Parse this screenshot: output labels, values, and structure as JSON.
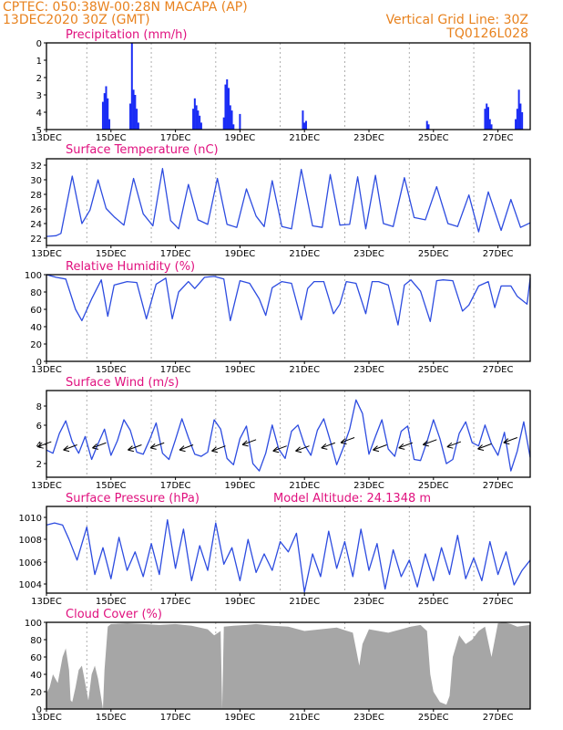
{
  "header": {
    "station_line": "CPTEC:   050:38W-00:28N   MACAPA (AP)",
    "date_line": "13DEC2020 30Z (GMT)",
    "grid_line": "Vertical Grid Line: 30Z",
    "code": "TQ0126L028"
  },
  "colors": {
    "series": "#2d4ce0",
    "header": "#e8821e",
    "title": "#e0107e",
    "cloud": "#a6a6a6",
    "precip": "#1a2cf5"
  },
  "x_axis": {
    "ticks": [
      "13DEC",
      "15DEC",
      "17DEC",
      "19DEC",
      "21DEC",
      "23DEC",
      "25DEC",
      "27DEC"
    ],
    "day_range": [
      13,
      28
    ]
  },
  "chart_data": [
    {
      "type": "bar",
      "title": "Precipitation (mm/h)",
      "ylim": [
        0,
        5
      ],
      "yticks": [
        "0",
        "1",
        "2",
        "3",
        "4",
        "5"
      ],
      "bars": [
        [
          14.75,
          1.6
        ],
        [
          14.8,
          2.1
        ],
        [
          14.85,
          2.5
        ],
        [
          14.9,
          1.8
        ],
        [
          14.95,
          0.6
        ],
        [
          15.6,
          1.5
        ],
        [
          15.65,
          5.0
        ],
        [
          15.7,
          2.3
        ],
        [
          15.75,
          2.0
        ],
        [
          15.8,
          1.2
        ],
        [
          15.85,
          0.4
        ],
        [
          17.55,
          1.2
        ],
        [
          17.6,
          1.8
        ],
        [
          17.65,
          1.4
        ],
        [
          17.7,
          1.1
        ],
        [
          17.75,
          0.8
        ],
        [
          17.8,
          0.4
        ],
        [
          18.5,
          0.7
        ],
        [
          18.55,
          2.6
        ],
        [
          18.6,
          2.9
        ],
        [
          18.65,
          2.4
        ],
        [
          18.7,
          1.4
        ],
        [
          18.75,
          1.1
        ],
        [
          18.8,
          0.3
        ],
        [
          19.0,
          0.9
        ],
        [
          20.95,
          1.1
        ],
        [
          21.0,
          0.4
        ],
        [
          21.05,
          0.5
        ],
        [
          24.8,
          0.5
        ],
        [
          24.85,
          0.3
        ],
        [
          26.6,
          1.2
        ],
        [
          26.65,
          1.5
        ],
        [
          26.7,
          1.3
        ],
        [
          26.75,
          0.6
        ],
        [
          26.8,
          0.3
        ],
        [
          27.55,
          0.6
        ],
        [
          27.6,
          1.2
        ],
        [
          27.65,
          2.3
        ],
        [
          27.7,
          1.5
        ],
        [
          27.75,
          1.0
        ]
      ]
    },
    {
      "type": "line",
      "title": "Surface Temperature (nC)",
      "ylim": [
        21.5,
        33
      ],
      "yticks": [
        "22",
        "24",
        "26",
        "28",
        "30",
        "32"
      ],
      "x": [
        13.0,
        13.3,
        13.45,
        13.8,
        14.1,
        14.35,
        14.6,
        14.85,
        15.1,
        15.4,
        15.7,
        16.0,
        16.3,
        16.6,
        16.85,
        17.1,
        17.4,
        17.7,
        18.0,
        18.3,
        18.6,
        18.9,
        19.2,
        19.5,
        19.75,
        20.0,
        20.3,
        20.6,
        20.9,
        21.25,
        21.55,
        21.8,
        22.1,
        22.4,
        22.65,
        22.9,
        23.2,
        23.45,
        23.75,
        24.1,
        24.4,
        24.75,
        25.1,
        25.45,
        25.75,
        26.1,
        26.4,
        26.7,
        27.1,
        27.4,
        27.7,
        28.0
      ],
      "y": [
        22.7,
        22.8,
        23.1,
        30.7,
        24.4,
        26.2,
        30.2,
        26.4,
        25.3,
        24.2,
        30.4,
        25.7,
        24.1,
        31.7,
        24.8,
        23.7,
        29.6,
        24.9,
        24.3,
        30.4,
        24.3,
        23.9,
        29.0,
        25.4,
        24.0,
        30.1,
        24.0,
        23.7,
        31.6,
        24.1,
        23.9,
        30.9,
        24.2,
        24.3,
        30.6,
        23.7,
        30.8,
        24.4,
        24.0,
        30.5,
        25.2,
        24.9,
        29.3,
        24.4,
        24.0,
        28.2,
        23.3,
        28.6,
        23.5,
        27.6,
        23.9,
        24.5
      ]
    },
    {
      "type": "line",
      "title": "Relative Humidity (%)",
      "ylim": [
        0,
        100
      ],
      "yticks": [
        "0",
        "20",
        "40",
        "60",
        "80",
        "100"
      ],
      "x": [
        13.0,
        13.3,
        13.6,
        13.9,
        14.1,
        14.4,
        14.7,
        14.9,
        15.1,
        15.5,
        15.8,
        16.1,
        16.4,
        16.7,
        16.9,
        17.1,
        17.4,
        17.6,
        17.9,
        18.2,
        18.5,
        18.7,
        19.0,
        19.3,
        19.6,
        19.8,
        20.0,
        20.3,
        20.6,
        20.9,
        21.1,
        21.3,
        21.6,
        21.9,
        22.1,
        22.3,
        22.6,
        22.9,
        23.1,
        23.3,
        23.6,
        23.9,
        24.1,
        24.3,
        24.6,
        24.9,
        25.1,
        25.3,
        25.6,
        25.9,
        26.1,
        26.4,
        26.7,
        26.9,
        27.1,
        27.4,
        27.6,
        27.9,
        28.0
      ],
      "y": [
        100,
        97,
        95,
        60,
        47,
        72,
        94,
        52,
        88,
        92,
        91,
        49,
        89,
        96,
        49,
        80,
        92,
        84,
        97,
        98,
        95,
        47,
        93,
        90,
        72,
        53,
        85,
        92,
        90,
        48,
        84,
        92,
        92,
        55,
        66,
        92,
        90,
        55,
        92,
        92,
        88,
        42,
        88,
        94,
        81,
        46,
        93,
        94,
        93,
        58,
        65,
        87,
        92,
        62,
        87,
        87,
        75,
        66,
        96
      ]
    },
    {
      "type": "line",
      "title": "Surface Wind (m/s)",
      "ylim": [
        1,
        9.3
      ],
      "yticks": [
        "2",
        "4",
        "6",
        "8"
      ],
      "x": [
        13.0,
        13.2,
        13.4,
        13.6,
        13.8,
        14.0,
        14.2,
        14.4,
        14.6,
        14.8,
        15.0,
        15.2,
        15.4,
        15.6,
        15.8,
        16.0,
        16.2,
        16.4,
        16.6,
        16.8,
        17.0,
        17.2,
        17.4,
        17.6,
        17.8,
        18.0,
        18.2,
        18.4,
        18.6,
        18.8,
        19.0,
        19.2,
        19.4,
        19.6,
        19.8,
        20.0,
        20.2,
        20.4,
        20.6,
        20.8,
        21.0,
        21.2,
        21.4,
        21.6,
        21.8,
        22.0,
        22.2,
        22.4,
        22.6,
        22.8,
        23.0,
        23.2,
        23.4,
        23.6,
        23.8,
        24.0,
        24.2,
        24.4,
        24.6,
        24.8,
        25.0,
        25.2,
        25.4,
        25.6,
        25.8,
        26.0,
        26.2,
        26.4,
        26.6,
        26.8,
        27.0,
        27.2,
        27.4,
        27.6,
        27.8,
        28.0
      ],
      "y": [
        3.6,
        3.3,
        5.2,
        6.4,
        4.4,
        3.3,
        4.9,
        2.7,
        4.2,
        5.6,
        3.1,
        4.5,
        6.5,
        5.5,
        3.4,
        3.2,
        4.6,
        6.2,
        3.3,
        2.7,
        4.6,
        6.6,
        4.8,
        3.2,
        3.0,
        3.4,
        6.5,
        5.6,
        2.8,
        2.2,
        4.7,
        5.9,
        2.3,
        1.6,
        3.3,
        6.0,
        3.7,
        2.8,
        5.4,
        6.0,
        4.1,
        3.1,
        5.5,
        6.6,
        4.5,
        2.2,
        3.8,
        5.6,
        8.4,
        7.1,
        3.2,
        4.9,
        6.5,
        3.7,
        3.0,
        5.4,
        5.9,
        2.7,
        2.6,
        4.4,
        6.5,
        4.7,
        2.3,
        2.7,
        5.2,
        6.3,
        4.3,
        4.0,
        6.0,
        4.2,
        3.1,
        5.3,
        1.6,
        3.5,
        6.3,
        2.9
      ]
    },
    {
      "type": "line",
      "title": "Surface Pressure (hPa)",
      "annotation": "Model Altitude: 24.1348  m",
      "ylim": [
        1002.8,
        1011.2
      ],
      "yticks": [
        "1004",
        "1006",
        "1008",
        "1010"
      ],
      "x": [
        13.0,
        13.25,
        13.5,
        13.7,
        13.95,
        14.25,
        14.5,
        14.75,
        15.0,
        15.25,
        15.5,
        15.75,
        16.0,
        16.25,
        16.5,
        16.75,
        17.0,
        17.25,
        17.5,
        17.75,
        18.0,
        18.25,
        18.5,
        18.75,
        19.0,
        19.25,
        19.5,
        19.75,
        20.0,
        20.25,
        20.5,
        20.75,
        21.0,
        21.25,
        21.5,
        21.75,
        22.0,
        22.25,
        22.5,
        22.75,
        23.0,
        23.25,
        23.5,
        23.75,
        24.0,
        24.25,
        24.5,
        24.75,
        25.0,
        25.25,
        25.5,
        25.75,
        26.0,
        26.25,
        26.5,
        26.75,
        27.0,
        27.25,
        27.5,
        27.75,
        28.0
      ],
      "y": [
        1009.4,
        1009.6,
        1009.4,
        1008.0,
        1006.0,
        1009.2,
        1004.6,
        1007.2,
        1004.2,
        1008.2,
        1005.0,
        1006.8,
        1004.4,
        1007.6,
        1004.6,
        1009.9,
        1005.2,
        1009.0,
        1004.0,
        1007.4,
        1005.0,
        1009.6,
        1005.6,
        1007.2,
        1004.0,
        1008.0,
        1004.8,
        1006.6,
        1005.0,
        1007.8,
        1006.8,
        1008.6,
        1002.9,
        1006.6,
        1004.4,
        1008.8,
        1005.2,
        1007.8,
        1004.4,
        1009.0,
        1005.0,
        1007.6,
        1003.2,
        1007.0,
        1004.4,
        1006.0,
        1003.4,
        1006.6,
        1004.0,
        1007.2,
        1004.6,
        1008.4,
        1004.2,
        1006.2,
        1004.0,
        1007.8,
        1004.6,
        1006.8,
        1003.6,
        1005.0,
        1006.0
      ]
    },
    {
      "type": "area",
      "title": "Cloud Cover (%)",
      "ylim": [
        0,
        100
      ],
      "yticks": [
        "0",
        "20",
        "40",
        "60",
        "80",
        "100"
      ],
      "x": [
        13.0,
        13.1,
        13.2,
        13.35,
        13.5,
        13.6,
        13.7,
        13.75,
        13.8,
        13.9,
        14.0,
        14.1,
        14.2,
        14.3,
        14.4,
        14.5,
        14.6,
        14.7,
        14.75,
        14.8,
        14.9,
        15.0,
        15.5,
        16.0,
        16.5,
        17.0,
        17.5,
        18.0,
        18.2,
        18.4,
        18.45,
        18.5,
        18.8,
        19.2,
        19.5,
        20.0,
        20.5,
        21.0,
        21.5,
        22.0,
        22.5,
        22.7,
        22.8,
        23.0,
        23.3,
        23.6,
        24.0,
        24.3,
        24.6,
        24.8,
        24.9,
        25.0,
        25.2,
        25.4,
        25.5,
        25.6,
        25.8,
        26.0,
        26.2,
        26.4,
        26.6,
        26.8,
        27.0,
        27.2,
        27.4,
        27.6,
        27.8,
        28.0
      ],
      "y": [
        18,
        25,
        40,
        30,
        60,
        70,
        45,
        10,
        8,
        25,
        45,
        50,
        30,
        10,
        40,
        50,
        35,
        12,
        0,
        45,
        95,
        98,
        99,
        98,
        97,
        98,
        96,
        92,
        85,
        90,
        0,
        95,
        96,
        97,
        98,
        96,
        95,
        90,
        92,
        94,
        88,
        50,
        75,
        92,
        90,
        88,
        92,
        95,
        97,
        90,
        40,
        20,
        8,
        5,
        15,
        60,
        85,
        75,
        80,
        90,
        95,
        60,
        99,
        100,
        98,
        95,
        96,
        97
      ]
    }
  ],
  "wind_arrows": {
    "description_days": [
      13.15,
      13.95,
      14.85,
      15.95,
      16.65,
      17.55,
      18.55,
      19.5,
      20.45,
      21.15,
      21.95,
      22.55,
      23.55,
      24.35,
      25.1,
      25.85,
      26.8,
      27.6
    ],
    "levels": [
      4.4,
      4.1,
      4.3,
      4.1,
      4.3,
      4.1,
      4.0,
      4.6,
      4.0,
      4.0,
      4.3,
      4.8,
      4.1,
      4.3,
      4.6,
      4.4,
      4.2,
      4.8
    ]
  }
}
